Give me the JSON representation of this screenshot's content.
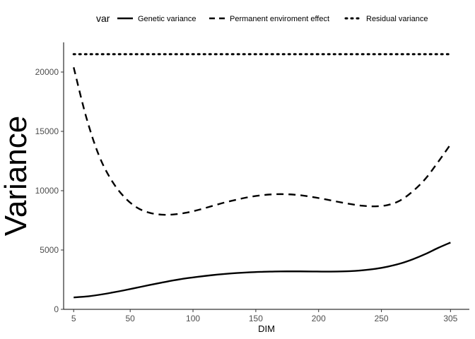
{
  "chart_data": {
    "type": "line",
    "xlabel": "DIM",
    "ylabel": "Variance",
    "xlim": [
      -3,
      320
    ],
    "ylim": [
      0,
      22500
    ],
    "x_ticks": [
      5,
      50,
      100,
      150,
      200,
      250,
      305
    ],
    "y_ticks": [
      0,
      5000,
      10000,
      15000,
      20000
    ],
    "grid": false,
    "legend": {
      "title": "var",
      "position": "top"
    },
    "x": [
      5,
      15,
      25,
      35,
      45,
      55,
      65,
      75,
      85,
      95,
      105,
      115,
      125,
      135,
      145,
      155,
      165,
      175,
      185,
      195,
      205,
      215,
      225,
      235,
      245,
      255,
      265,
      275,
      285,
      295,
      305
    ],
    "series": [
      {
        "name": "Genetic variance",
        "dash": "solid",
        "values": [
          1000,
          1080,
          1220,
          1400,
          1600,
          1820,
          2040,
          2250,
          2450,
          2620,
          2760,
          2880,
          2980,
          3060,
          3120,
          3160,
          3190,
          3200,
          3200,
          3190,
          3180,
          3190,
          3220,
          3290,
          3410,
          3600,
          3860,
          4220,
          4660,
          5170,
          5630
        ]
      },
      {
        "name": "Permanent enviroment effect",
        "dash": "dashed",
        "values": [
          20400,
          16200,
          13000,
          10900,
          9500,
          8600,
          8150,
          7980,
          8000,
          8150,
          8400,
          8700,
          9000,
          9250,
          9470,
          9620,
          9700,
          9700,
          9620,
          9470,
          9280,
          9070,
          8880,
          8730,
          8680,
          8790,
          9180,
          9950,
          11000,
          12400,
          13900
        ]
      },
      {
        "name": "Residual variance",
        "dash": "dotted",
        "values": [
          21500,
          21500,
          21500,
          21500,
          21500,
          21500,
          21500,
          21500,
          21500,
          21500,
          21500,
          21500,
          21500,
          21500,
          21500,
          21500,
          21500,
          21500,
          21500,
          21500,
          21500,
          21500,
          21500,
          21500,
          21500,
          21500,
          21500,
          21500,
          21500,
          21500,
          21500
        ]
      }
    ]
  }
}
